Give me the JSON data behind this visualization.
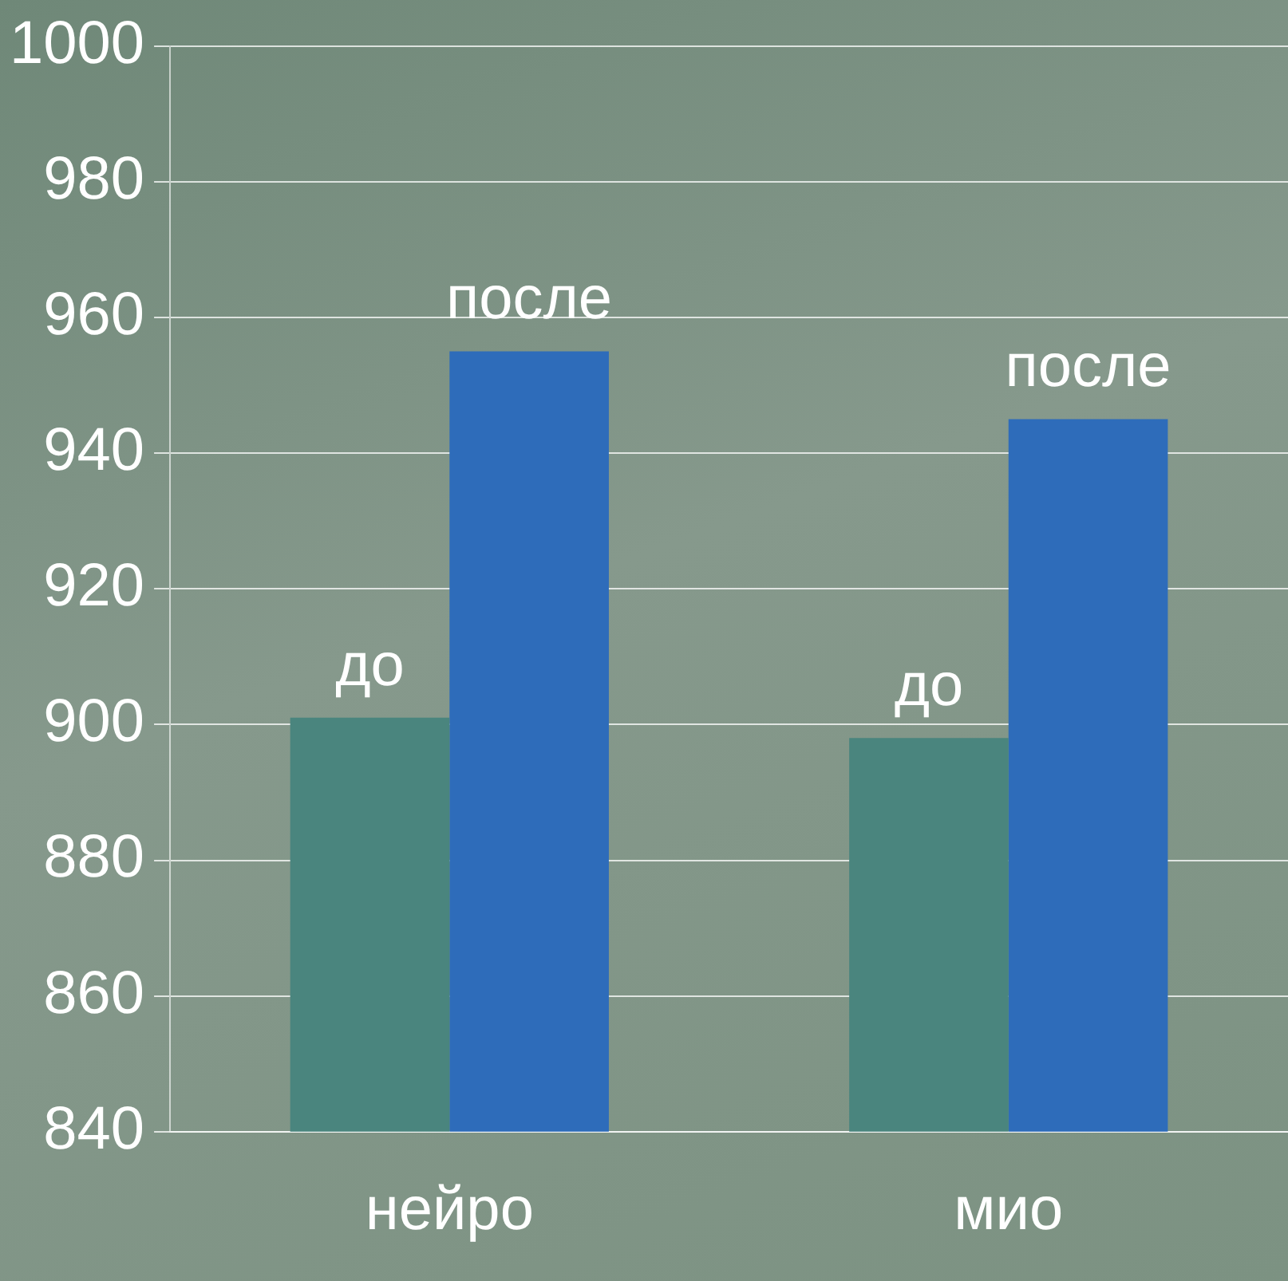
{
  "chart_data": {
    "type": "bar",
    "categories": [
      "нейро",
      "мио"
    ],
    "series": [
      {
        "name": "до",
        "color": "#4a857e",
        "values": [
          901,
          898
        ]
      },
      {
        "name": "после",
        "color": "#2e6cba",
        "values": [
          955,
          945
        ]
      }
    ],
    "ylim": [
      840,
      1000
    ],
    "yticks": [
      840,
      860,
      880,
      900,
      920,
      940,
      960,
      980,
      1000
    ],
    "grid": "y",
    "legend": false
  }
}
